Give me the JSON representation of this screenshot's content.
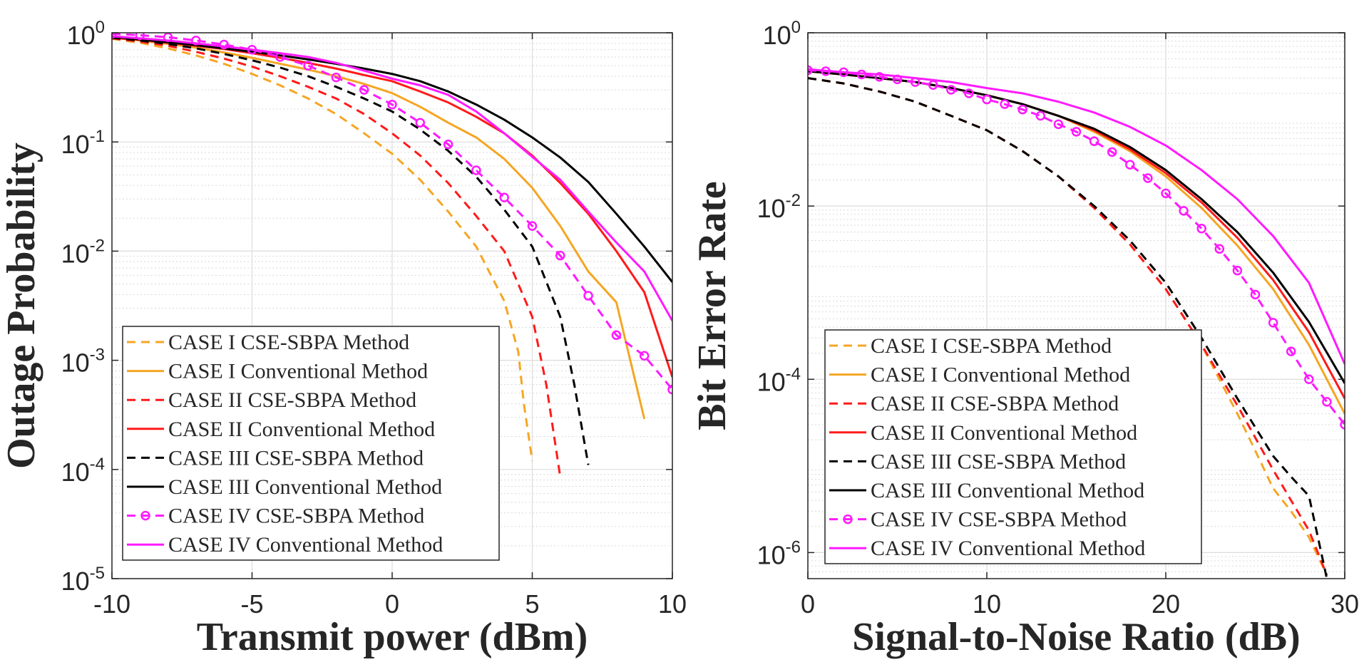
{
  "chart_data": [
    {
      "type": "line",
      "xscale": "linear",
      "yscale": "log",
      "xlabel": "Transmit power (dBm)",
      "ylabel": "Outage Probability",
      "xlim": [
        -10,
        10
      ],
      "ylim": [
        1e-05,
        1
      ],
      "xticks": [
        -10,
        -5,
        0,
        5,
        10
      ],
      "xtick_labels": [
        "-10",
        "-5",
        "0",
        "5",
        "10"
      ],
      "yticks_exp": [
        0,
        -1,
        -2,
        -3,
        -4,
        -5
      ],
      "grid": true,
      "legend_position": "bottom-left",
      "series": [
        {
          "name": "CASE I CSE-SBPA Method",
          "color": "#f5a623",
          "dash": "dashed",
          "marker": "none",
          "x": [
            -10,
            -9,
            -8,
            -7,
            -6,
            -5,
            -4,
            -3,
            -2,
            -1,
            0,
            1,
            2,
            3,
            4,
            4.5,
            4.7,
            5
          ],
          "y": [
            0.88,
            0.81,
            0.72,
            0.62,
            0.52,
            0.42,
            0.33,
            0.25,
            0.18,
            0.12,
            0.078,
            0.045,
            0.023,
            0.011,
            0.0035,
            0.0012,
            0.0004,
            0.00012
          ]
        },
        {
          "name": "CASE I Conventional Method",
          "color": "#f5a623",
          "dash": "solid",
          "marker": "none",
          "x": [
            -10,
            -9,
            -8,
            -7,
            -6,
            -5,
            -4,
            -3,
            -2,
            -1,
            0,
            1,
            2,
            3,
            4,
            5,
            6,
            7,
            8,
            9
          ],
          "y": [
            0.9,
            0.85,
            0.79,
            0.73,
            0.66,
            0.59,
            0.52,
            0.46,
            0.4,
            0.34,
            0.28,
            0.21,
            0.15,
            0.11,
            0.07,
            0.038,
            0.017,
            0.0065,
            0.0034,
            0.00029
          ]
        },
        {
          "name": "CASE II CSE-SBPA Method",
          "color": "#ff1a1a",
          "dash": "dashed",
          "marker": "none",
          "x": [
            -10,
            -9,
            -8,
            -7,
            -6,
            -5,
            -4,
            -3,
            -2,
            -1,
            0,
            1,
            2,
            3,
            4,
            5,
            5.5,
            6
          ],
          "y": [
            0.89,
            0.83,
            0.76,
            0.67,
            0.58,
            0.49,
            0.4,
            0.32,
            0.25,
            0.18,
            0.12,
            0.075,
            0.042,
            0.021,
            0.01,
            0.0025,
            0.0006,
            8.5e-05
          ]
        },
        {
          "name": "CASE II Conventional Method",
          "color": "#ff1a1a",
          "dash": "solid",
          "marker": "none",
          "x": [
            -10,
            -9,
            -8,
            -7,
            -6,
            -5,
            -4,
            -3,
            -2,
            -1,
            0,
            1,
            2,
            3,
            4,
            5,
            6,
            7,
            8,
            9,
            10
          ],
          "y": [
            0.9,
            0.86,
            0.81,
            0.76,
            0.71,
            0.65,
            0.59,
            0.53,
            0.47,
            0.41,
            0.36,
            0.29,
            0.23,
            0.17,
            0.12,
            0.075,
            0.042,
            0.022,
            0.01,
            0.0042,
            0.0007
          ]
        },
        {
          "name": "CASE III CSE-SBPA Method",
          "color": "#000000",
          "dash": "dashed",
          "marker": "none",
          "x": [
            -10,
            -9,
            -8,
            -7,
            -6,
            -5,
            -4,
            -3,
            -2,
            -1,
            0,
            1,
            2,
            3,
            4,
            5,
            6,
            6.5,
            7
          ],
          "y": [
            0.9,
            0.85,
            0.79,
            0.72,
            0.64,
            0.56,
            0.48,
            0.4,
            0.32,
            0.25,
            0.19,
            0.13,
            0.083,
            0.048,
            0.024,
            0.011,
            0.0025,
            0.0006,
            0.00011
          ]
        },
        {
          "name": "CASE III Conventional Method",
          "color": "#000000",
          "dash": "solid",
          "marker": "none",
          "x": [
            -10,
            -9,
            -8,
            -7,
            -6,
            -5,
            -4,
            -3,
            -2,
            -1,
            0,
            1,
            2,
            3,
            4,
            5,
            6,
            7,
            8,
            9,
            10
          ],
          "y": [
            0.92,
            0.87,
            0.82,
            0.77,
            0.72,
            0.67,
            0.62,
            0.57,
            0.52,
            0.47,
            0.42,
            0.36,
            0.29,
            0.22,
            0.16,
            0.11,
            0.072,
            0.043,
            0.022,
            0.011,
            0.0052
          ]
        },
        {
          "name": "CASE IV CSE-SBPA Method",
          "color": "#ff1aff",
          "dash": "dashed",
          "marker": "circle",
          "x": [
            -10,
            -9,
            -8,
            -7,
            -6,
            -5,
            -4,
            -3,
            -2,
            -1,
            0,
            1,
            2,
            3,
            4,
            5,
            6,
            7,
            8,
            9,
            10
          ],
          "y": [
            0.98,
            0.95,
            0.91,
            0.85,
            0.78,
            0.7,
            0.6,
            0.5,
            0.39,
            0.3,
            0.22,
            0.15,
            0.095,
            0.055,
            0.031,
            0.017,
            0.0091,
            0.0039,
            0.0017,
            0.0011,
            0.00054
          ]
        },
        {
          "name": "CASE IV Conventional Method",
          "color": "#ff1aff",
          "dash": "solid",
          "marker": "none",
          "x": [
            -10,
            -9,
            -8,
            -7,
            -6,
            -5,
            -4,
            -3,
            -2,
            -1,
            0,
            1,
            2,
            3,
            4,
            5,
            6,
            7,
            8,
            9,
            10
          ],
          "y": [
            0.93,
            0.89,
            0.85,
            0.8,
            0.75,
            0.7,
            0.65,
            0.6,
            0.53,
            0.45,
            0.38,
            0.33,
            0.27,
            0.19,
            0.12,
            0.073,
            0.045,
            0.023,
            0.012,
            0.0065,
            0.0023
          ]
        }
      ]
    },
    {
      "type": "line",
      "xscale": "linear",
      "yscale": "log",
      "xlabel": "Signal-to-Noise Ratio (dB)",
      "ylabel": "Bit Error Rate",
      "xlim": [
        0,
        30
      ],
      "ylim": [
        5e-07,
        1
      ],
      "xticks": [
        0,
        10,
        20,
        30
      ],
      "xtick_labels": [
        "0",
        "10",
        "20",
        "30"
      ],
      "yticks_exp": [
        0,
        -2,
        -4,
        -6
      ],
      "grid": true,
      "legend_position": "bottom-left",
      "series": [
        {
          "name": "CASE I CSE-SBPA Method",
          "color": "#f5a623",
          "dash": "dashed",
          "marker": "none",
          "x": [
            0,
            2,
            4,
            6,
            8,
            10,
            12,
            14,
            16,
            18,
            20,
            22,
            24,
            25,
            26,
            27,
            28,
            29
          ],
          "y": [
            0.3,
            0.26,
            0.21,
            0.16,
            0.11,
            0.075,
            0.043,
            0.022,
            0.0095,
            0.0036,
            0.0011,
            0.00025,
            4e-05,
            1.5e-05,
            5.5e-06,
            3e-06,
            1.5e-06,
            5.5e-07
          ]
        },
        {
          "name": "CASE I Conventional Method",
          "color": "#f5a623",
          "dash": "solid",
          "marker": "none",
          "x": [
            0,
            2,
            4,
            6,
            8,
            10,
            12,
            14,
            16,
            18,
            20,
            22,
            24,
            26,
            28,
            30
          ],
          "y": [
            0.36,
            0.33,
            0.3,
            0.27,
            0.23,
            0.19,
            0.15,
            0.11,
            0.072,
            0.043,
            0.022,
            0.0095,
            0.0035,
            0.0011,
            0.00025,
            4e-05
          ]
        },
        {
          "name": "CASE II CSE-SBPA Method",
          "color": "#ff1a1a",
          "dash": "dashed",
          "marker": "none",
          "x": [
            0,
            2,
            4,
            6,
            8,
            10,
            12,
            14,
            16,
            18,
            20,
            22,
            24,
            26,
            27,
            28,
            29
          ],
          "y": [
            0.3,
            0.26,
            0.21,
            0.16,
            0.11,
            0.075,
            0.043,
            0.022,
            0.0095,
            0.0036,
            0.0011,
            0.00025,
            5e-05,
            9e-06,
            4e-06,
            1.8e-06,
            5.5e-07
          ]
        },
        {
          "name": "CASE II Conventional Method",
          "color": "#ff1a1a",
          "dash": "solid",
          "marker": "none",
          "x": [
            0,
            2,
            4,
            6,
            8,
            10,
            12,
            14,
            16,
            18,
            20,
            22,
            24,
            26,
            28,
            30
          ],
          "y": [
            0.36,
            0.33,
            0.3,
            0.27,
            0.23,
            0.19,
            0.15,
            0.11,
            0.075,
            0.045,
            0.024,
            0.011,
            0.0043,
            0.0014,
            0.00035,
            6e-05
          ]
        },
        {
          "name": "CASE III CSE-SBPA Method",
          "color": "#000000",
          "dash": "dashed",
          "marker": "none",
          "x": [
            0,
            2,
            4,
            6,
            8,
            10,
            12,
            14,
            16,
            18,
            20,
            22,
            24,
            26,
            27,
            28,
            28.5,
            29
          ],
          "y": [
            0.3,
            0.26,
            0.21,
            0.16,
            0.11,
            0.075,
            0.043,
            0.022,
            0.01,
            0.004,
            0.0013,
            0.0003,
            6e-05,
            1.3e-05,
            7.5e-06,
            4.5e-06,
            1.5e-06,
            5e-07
          ]
        },
        {
          "name": "CASE III Conventional Method",
          "color": "#000000",
          "dash": "solid",
          "marker": "none",
          "x": [
            0,
            2,
            4,
            6,
            8,
            10,
            12,
            14,
            16,
            18,
            20,
            22,
            24,
            26,
            28,
            30
          ],
          "y": [
            0.36,
            0.33,
            0.3,
            0.27,
            0.23,
            0.19,
            0.15,
            0.11,
            0.078,
            0.048,
            0.026,
            0.012,
            0.005,
            0.0017,
            0.00046,
            9e-05
          ]
        },
        {
          "name": "CASE IV CSE-SBPA Method",
          "color": "#ff1aff",
          "dash": "dashed",
          "marker": "circle",
          "x": [
            0,
            1,
            2,
            3,
            4,
            5,
            6,
            7,
            8,
            9,
            10,
            11,
            12,
            13,
            14,
            15,
            16,
            17,
            18,
            19,
            20,
            21,
            22,
            23,
            24,
            25,
            26,
            27,
            28,
            29,
            30
          ],
          "y": [
            0.37,
            0.36,
            0.35,
            0.33,
            0.31,
            0.29,
            0.27,
            0.25,
            0.22,
            0.2,
            0.17,
            0.15,
            0.13,
            0.11,
            0.088,
            0.072,
            0.056,
            0.042,
            0.03,
            0.021,
            0.014,
            0.0088,
            0.0055,
            0.0032,
            0.0018,
            0.00095,
            0.00045,
            0.00021,
            0.0001,
            5.5e-05,
            3e-05
          ]
        },
        {
          "name": "CASE IV Conventional Method",
          "color": "#ff1aff",
          "dash": "solid",
          "marker": "none",
          "x": [
            0,
            2,
            4,
            6,
            8,
            10,
            12,
            14,
            16,
            18,
            20,
            22,
            24,
            26,
            28,
            30
          ],
          "y": [
            0.38,
            0.35,
            0.33,
            0.3,
            0.27,
            0.23,
            0.2,
            0.16,
            0.12,
            0.082,
            0.05,
            0.026,
            0.012,
            0.0045,
            0.0013,
            0.00015
          ]
        }
      ]
    }
  ]
}
